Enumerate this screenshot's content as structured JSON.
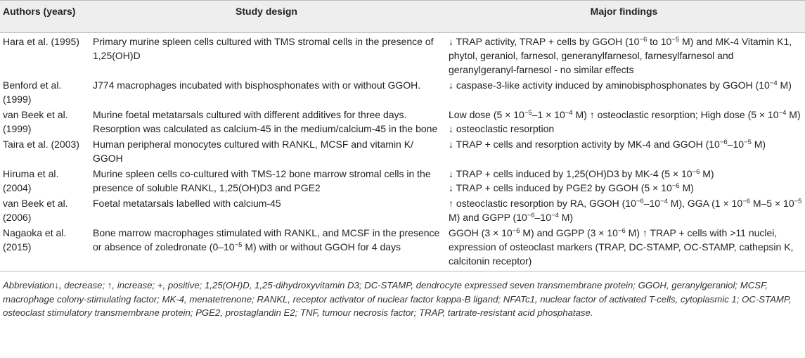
{
  "header": {
    "authors": "Authors (years)",
    "design": "Study design",
    "findings": "Major findings"
  },
  "rows": [
    {
      "authors": "Hara et al. (1995)",
      "design": "Primary murine spleen cells cultured with TMS stromal cells in the presence of 1,25(OH)D",
      "findings_html": "↓ TRAP activity, TRAP + cells by GGOH (10<sup>−6</sup> to 10<sup>−5</sup> M) and MK-4 Vitamin K1, phytol, geraniol, farnesol, generanylfarnesol, farnesylfarnesol and geranylgeranyl-farnesol - no similar effects"
    },
    {
      "authors": "Benford et al. (1999)",
      "design": "J774 macrophages incubated with bisphosphonates with or without GGOH.",
      "findings_html": "↓ caspase-3-like activity induced by aminobisphosphonates by GGOH (10<sup>−4</sup> M)"
    },
    {
      "authors": "van Beek et al. (1999)",
      "design": "Murine foetal metatarsals cultured with different additives for three days. Resorption was calculated as calcium-45 in the medium/calcium-45 in the bone",
      "findings_html": "Low dose (5 × 10<sup>−5</sup>–1 × 10<sup>−4</sup> M) ↑ osteoclastic resorption; High dose (5 × 10<sup>−4</sup> M) ↓ osteoclastic resorption"
    },
    {
      "authors": "Taira et al. (2003)",
      "design": "Human peripheral monocytes cultured with RANKL, MCSF and vitamin K/ GGOH",
      "findings_html": "↓ TRAP + cells and resorption activity by MK-4 and GGOH (10<sup>−6</sup>–10<sup>−5</sup> M)"
    },
    {
      "authors": "Hiruma et al. (2004)",
      "design": "Murine spleen cells co-cultured with TMS-12 bone marrow stromal cells in the presence of soluble RANKL, 1,25(OH)D3 and PGE2",
      "findings_html": "↓ TRAP + cells induced by 1,25(OH)D3 by MK-4 (5 × 10<sup>−6</sup> M)<br>↓ TRAP + cells induced by PGE2 by GGOH (5 × 10<sup>−6</sup> M)"
    },
    {
      "authors": "van Beek et al. (2006)",
      "design": "Foetal metatarsals labelled with calcium-45",
      "findings_html": "↑ osteoclastic resorption by RA, GGOH (10<sup>−6</sup>–10<sup>−4</sup> M), GGA (1 × 10<sup>−6</sup> M–5 × 10<sup>−5</sup> M) and GGPP (10<sup>−6</sup>–10<sup>−4</sup> M)"
    },
    {
      "authors": "Nagaoka et al. (2015)",
      "design": "Bone marrow macrophages stimulated with RANKL, and MCSF in the presence or absence of zoledronate (0–10<sup>−5</sup> M) with or without GGOH for 4 days",
      "findings_html": "GGOH (3 × 10<sup>−6</sup> M) and GGPP (3 × 10<sup>−6</sup> M) ↑ TRAP + cells with >11 nuclei, expression of osteoclast markers (TRAP, DC-STAMP, OC-STAMP, cathepsin K, calcitonin receptor)"
    }
  ],
  "footnote": "Abbreviation↓, decrease; ↑, increase; +, positive; 1,25(OH)D, 1,25-dihydroxyvitamin D3; DC-STAMP, dendrocyte expressed seven transmembrane protein; GGOH, geranylgeraniol; MCSF, macrophage colony-stimulating factor; MK-4, menatetrenone; RANKL, receptor activator of nuclear factor kappa-B ligand; NFATc1, nuclear factor of activated T-cells, cytoplasmic 1; OC-STAMP, osteoclast stimulatory transmembrane protein; PGE2, prostaglandin E2; TNF, tumour necrosis factor; TRAP, tartrate-resistant acid phosphatase."
}
